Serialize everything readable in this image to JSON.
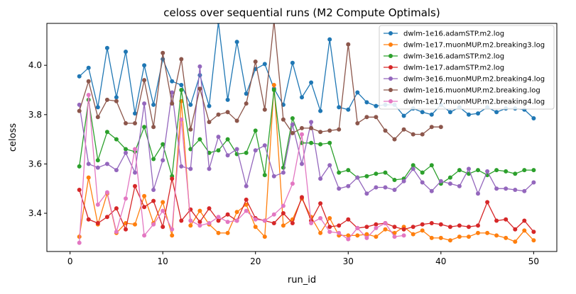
{
  "chart_data": {
    "type": "line",
    "title": "celoss over sequential runs (M2 Compute Optimals)",
    "xlabel": "run_id",
    "ylabel": "celoss",
    "xlim": [
      -2.5,
      52.5
    ],
    "ylim": [
      3.245,
      4.17
    ],
    "xticks": [
      0,
      10,
      20,
      30,
      40,
      50
    ],
    "yticks": [
      3.4,
      3.6,
      3.8,
      4.0
    ],
    "grid": false,
    "legend_position": "top-right",
    "series": [
      {
        "name": "dwlm-1e16.adamSTP.m2.log",
        "color": "#1f77b4",
        "x": [
          1,
          2,
          3,
          4,
          5,
          6,
          7,
          8,
          9,
          10,
          11,
          12,
          13,
          14,
          15,
          16,
          17,
          18,
          19,
          20,
          21,
          22,
          23,
          24,
          25,
          26,
          27,
          28,
          29,
          30,
          31,
          32,
          33,
          34,
          35,
          36,
          37,
          38,
          39,
          40,
          41,
          42,
          43,
          44,
          45,
          46,
          47,
          48,
          49,
          50
        ],
        "values": [
          3.955,
          3.99,
          3.83,
          4.07,
          3.87,
          4.055,
          3.805,
          4.0,
          3.84,
          4.025,
          3.935,
          3.92,
          3.84,
          3.96,
          3.835,
          4.175,
          3.86,
          4.095,
          3.885,
          3.985,
          4.005,
          3.905,
          3.84,
          4.01,
          3.87,
          3.93,
          3.815,
          4.105,
          3.83,
          3.82,
          3.89,
          3.85,
          3.835,
          3.84,
          3.84,
          3.795,
          3.825,
          3.81,
          3.8,
          3.84,
          3.81,
          3.83,
          3.8,
          3.805,
          3.83,
          3.81,
          3.825,
          3.825,
          3.82,
          3.785
        ]
      },
      {
        "name": "dwlm-1e17.muonMUP.m2.breaking3.log",
        "color": "#ff7f0e",
        "x": [
          1,
          2,
          3,
          4,
          5,
          6,
          7,
          8,
          9,
          10,
          11,
          12,
          13,
          14,
          15,
          16,
          17,
          18,
          19,
          20,
          21,
          22,
          23,
          24,
          25,
          26,
          27,
          28,
          29,
          30,
          31,
          32,
          33,
          34,
          35,
          36,
          37,
          38,
          39,
          40,
          41,
          42,
          43,
          44,
          45,
          46,
          47,
          48,
          49,
          50
        ],
        "values": [
          3.305,
          3.545,
          3.355,
          3.48,
          3.32,
          3.36,
          3.355,
          3.47,
          3.36,
          3.445,
          3.31,
          3.855,
          3.35,
          3.41,
          3.355,
          3.32,
          3.32,
          3.405,
          3.435,
          3.345,
          3.305,
          3.92,
          3.35,
          3.375,
          3.46,
          3.385,
          3.32,
          3.38,
          3.31,
          3.31,
          3.31,
          3.315,
          3.305,
          3.335,
          3.32,
          3.345,
          3.315,
          3.33,
          3.3,
          3.3,
          3.29,
          3.305,
          3.305,
          3.32,
          3.32,
          3.31,
          3.3,
          3.285,
          3.33,
          3.29
        ]
      },
      {
        "name": "dwlm-3e16.adamSTP.m2.log",
        "color": "#2ca02c",
        "x": [
          1,
          2,
          3,
          4,
          5,
          6,
          7,
          8,
          9,
          10,
          11,
          12,
          13,
          14,
          15,
          16,
          17,
          18,
          19,
          20,
          21,
          22,
          23,
          24,
          25,
          26,
          27,
          28,
          29,
          30,
          31,
          32,
          33,
          34,
          35,
          36,
          37,
          38,
          39,
          40,
          41,
          42,
          43,
          44,
          45,
          46,
          47,
          48,
          49,
          50
        ],
        "values": [
          3.59,
          3.86,
          3.615,
          3.73,
          3.7,
          3.66,
          3.65,
          3.75,
          3.62,
          3.68,
          3.55,
          3.9,
          3.66,
          3.7,
          3.645,
          3.655,
          3.7,
          3.64,
          3.645,
          3.735,
          3.555,
          3.9,
          3.585,
          3.785,
          3.685,
          3.685,
          3.68,
          3.685,
          3.565,
          3.575,
          3.545,
          3.55,
          3.56,
          3.565,
          3.535,
          3.54,
          3.595,
          3.565,
          3.595,
          3.52,
          3.545,
          3.575,
          3.56,
          3.575,
          3.555,
          3.575,
          3.57,
          3.56,
          3.575,
          3.575
        ]
      },
      {
        "name": "dwlm-1e17.adamSTP.m2.log",
        "color": "#d62728",
        "x": [
          1,
          2,
          3,
          4,
          5,
          6,
          7,
          8,
          9,
          10,
          11,
          12,
          13,
          14,
          15,
          16,
          17,
          18,
          19,
          20,
          21,
          22,
          23,
          24,
          25,
          26,
          27,
          28,
          29,
          30,
          31,
          32,
          33,
          34,
          35,
          36,
          37,
          38,
          39,
          40,
          41,
          42,
          43,
          44,
          45,
          46,
          47,
          48,
          49,
          50
        ],
        "values": [
          3.495,
          3.375,
          3.36,
          3.385,
          3.42,
          3.335,
          3.51,
          3.425,
          3.45,
          3.345,
          3.54,
          3.37,
          3.415,
          3.365,
          3.42,
          3.37,
          3.395,
          3.37,
          3.455,
          3.38,
          3.37,
          3.36,
          3.4,
          3.36,
          3.465,
          3.37,
          3.44,
          3.345,
          3.35,
          3.375,
          3.34,
          3.345,
          3.355,
          3.36,
          3.345,
          3.335,
          3.345,
          3.355,
          3.36,
          3.355,
          3.345,
          3.35,
          3.345,
          3.35,
          3.445,
          3.37,
          3.375,
          3.335,
          3.37,
          3.325
        ]
      },
      {
        "name": "dwlm-3e16.muonMUP.m2.breaking4.log",
        "color": "#9467bd",
        "x": [
          1,
          2,
          3,
          4,
          5,
          6,
          7,
          8,
          9,
          10,
          11,
          12,
          13,
          14,
          15,
          16,
          17,
          18,
          19,
          20,
          21,
          22,
          23,
          24,
          25,
          26,
          27,
          28,
          29,
          30,
          31,
          32,
          33,
          34,
          35,
          36,
          37,
          38,
          39,
          40,
          41,
          42,
          43,
          44,
          45,
          46,
          47,
          48,
          49,
          50
        ],
        "values": [
          3.84,
          3.6,
          3.585,
          3.6,
          3.575,
          3.645,
          3.565,
          3.845,
          3.495,
          3.615,
          3.89,
          3.59,
          3.58,
          3.995,
          3.58,
          3.71,
          3.635,
          3.66,
          3.51,
          3.655,
          3.675,
          3.55,
          3.565,
          3.76,
          3.6,
          3.77,
          3.54,
          3.595,
          3.5,
          3.51,
          3.545,
          3.48,
          3.505,
          3.505,
          3.495,
          3.53,
          3.58,
          3.525,
          3.49,
          3.53,
          3.52,
          3.51,
          3.58,
          3.48,
          3.57,
          3.5,
          3.5,
          3.495,
          3.49,
          3.525
        ]
      },
      {
        "name": "dwlm-1e16.muonMUP.m2.breaking.log",
        "color": "#8c564b",
        "x": [
          1,
          2,
          3,
          4,
          5,
          6,
          7,
          8,
          9,
          10,
          11,
          12,
          13,
          14,
          15,
          16,
          17,
          18,
          19,
          20,
          21,
          22,
          23,
          24,
          25,
          26,
          27,
          28,
          29,
          30,
          31,
          32,
          33,
          34,
          35,
          36,
          37,
          38,
          39,
          40
        ],
        "values": [
          3.815,
          3.935,
          3.79,
          3.86,
          3.855,
          3.765,
          3.765,
          3.94,
          3.75,
          4.05,
          3.845,
          4.025,
          3.74,
          3.905,
          3.77,
          3.8,
          3.81,
          3.775,
          3.845,
          4.015,
          3.82,
          4.18,
          3.78,
          3.725,
          3.745,
          3.745,
          3.73,
          3.735,
          3.74,
          4.085,
          3.765,
          3.79,
          3.79,
          3.735,
          3.7,
          3.74,
          3.72,
          3.72,
          3.75,
          3.75
        ]
      },
      {
        "name": "dwlm-1e17.muonMUP.m2.breaking4.log",
        "color": "#e377c2",
        "x": [
          1,
          2,
          3,
          4,
          5,
          6,
          7,
          8,
          9,
          10,
          11,
          12,
          13,
          14,
          15,
          16,
          17,
          18,
          19,
          20,
          21,
          22,
          23,
          24,
          25,
          26,
          27,
          28,
          29,
          30,
          31,
          32,
          33,
          34,
          35,
          36,
          37,
          38,
          39,
          40
        ],
        "values": [
          3.28,
          3.88,
          3.435,
          3.485,
          3.325,
          3.46,
          3.66,
          3.31,
          3.355,
          3.41,
          3.335,
          3.78,
          3.37,
          3.35,
          3.36,
          3.385,
          3.365,
          3.37,
          3.41,
          3.375,
          3.37,
          3.395,
          3.43,
          3.52,
          3.72,
          3.36,
          3.38,
          3.325,
          3.32,
          3.295,
          3.34,
          3.3,
          3.34,
          3.36,
          3.305,
          3.31,
          null,
          null,
          null,
          null
        ]
      }
    ]
  }
}
